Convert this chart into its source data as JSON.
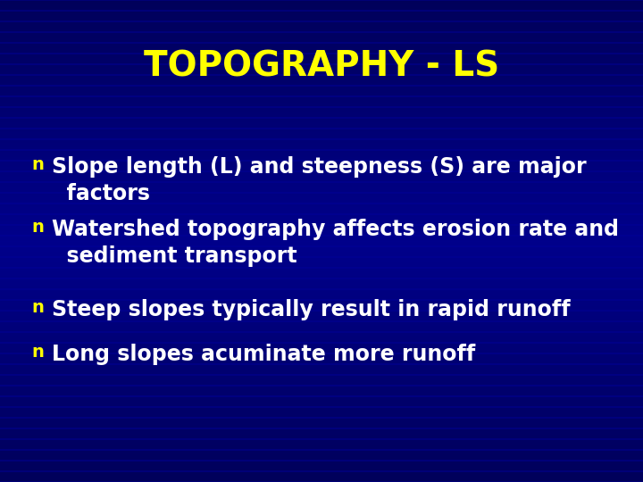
{
  "title": "TOPOGRAPHY - LS",
  "title_color": "#FFFF00",
  "title_fontsize": 28,
  "background_color": "#00008B",
  "background_dark": "#000066",
  "bullet_color": "#FFFF00",
  "text_color": "#FFFFFF",
  "text_fontsize": 17,
  "bullet_fontsize": 14,
  "bullets": [
    "Slope length (L) and steepness (S) are major\n  factors",
    "Watershed topography affects erosion rate and\n  sediment transport",
    "Steep slopes typically result in rapid runoff",
    "Long slopes acuminate more runoff"
  ],
  "stripe_color": "#000099",
  "num_stripes": 45,
  "stripe_linewidth": 1.2,
  "stripe_alpha": 0.55
}
